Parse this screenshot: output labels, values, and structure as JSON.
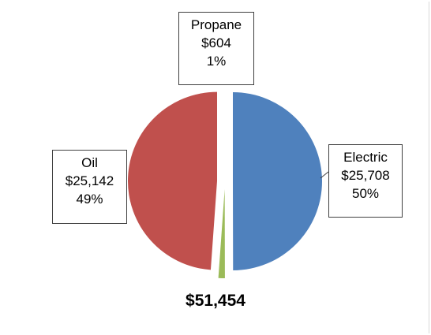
{
  "chart_data": {
    "type": "pie",
    "slices": [
      {
        "label": "Electric",
        "amount": "$25,708",
        "percent": "50%",
        "value": 25708,
        "color": "#4f81bd"
      },
      {
        "label": "Propane",
        "amount": "$604",
        "percent": "1%",
        "value": 604,
        "color": "#9bbb59"
      },
      {
        "label": "Oil",
        "amount": "$25,142",
        "percent": "49%",
        "value": 25142,
        "color": "#c0504d"
      }
    ],
    "total_label": "$51,454",
    "exploded": true,
    "data_labels": "boxed callouts"
  }
}
